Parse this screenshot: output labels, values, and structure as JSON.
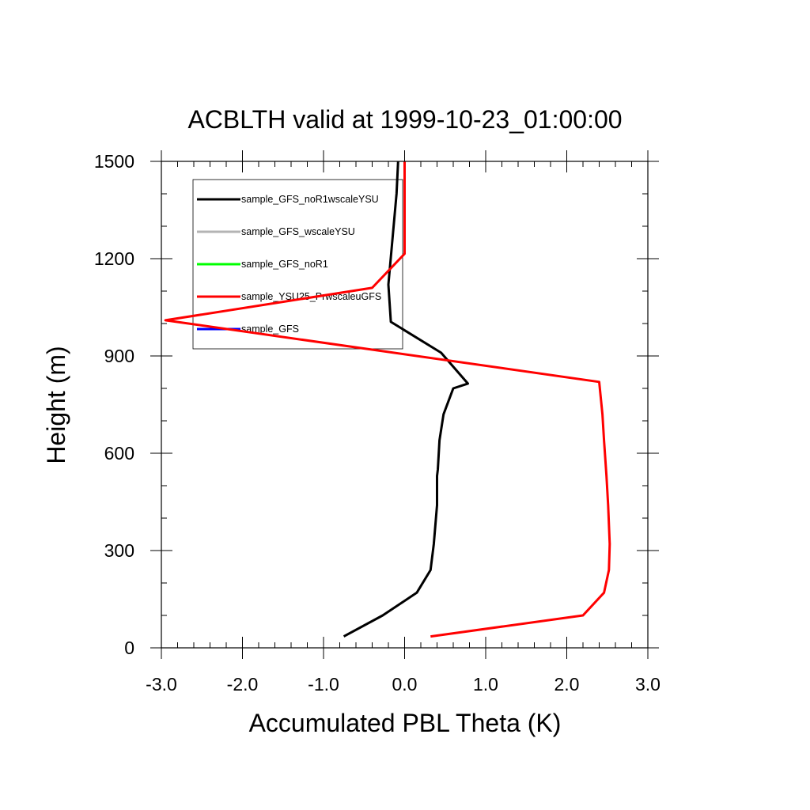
{
  "chart_data": {
    "type": "line",
    "title": "ACBLTH valid at 1999-10-23_01:00:00",
    "xlabel": "Accumulated PBL Theta (K)",
    "ylabel": "Height (m)",
    "xlim": [
      -3.0,
      3.0
    ],
    "ylim": [
      0,
      1500
    ],
    "x_ticks": [
      -3.0,
      -2.0,
      -1.0,
      0.0,
      1.0,
      2.0,
      3.0
    ],
    "x_tick_labels": [
      "-3.0",
      "-2.0",
      "-1.0",
      "0.0",
      "1.0",
      "2.0",
      "3.0"
    ],
    "y_ticks": [
      0,
      300,
      600,
      900,
      1200,
      1500
    ],
    "y_tick_labels": [
      "0",
      "300",
      "600",
      "900",
      "1200",
      "1500"
    ],
    "grid": false,
    "legend_position": "top-left",
    "series": [
      {
        "name": "sample_GFS_noR1wscaleYSU",
        "color": "#000000",
        "x": [
          -0.75,
          -0.27,
          0.15,
          0.32,
          0.36,
          0.4,
          0.4,
          0.41,
          0.43,
          0.48,
          0.6,
          0.78,
          0.45,
          -0.17,
          -0.2,
          -0.1,
          -0.08
        ],
        "y": [
          35,
          100,
          170,
          240,
          320,
          440,
          530,
          550,
          640,
          720,
          800,
          815,
          910,
          1005,
          1120,
          1400,
          1500
        ]
      },
      {
        "name": "sample_GFS_wscaleYSU",
        "color": "#b4b4b4",
        "x": [],
        "y": []
      },
      {
        "name": "sample_GFS_noR1",
        "color": "#00ff00",
        "x": [],
        "y": []
      },
      {
        "name": "sample_YSU25_PrwscaleuGFS",
        "color": "#ff0000",
        "x": [
          0.32,
          2.2,
          2.46,
          2.52,
          2.53,
          2.51,
          2.49,
          2.46,
          2.44,
          2.4,
          -2.95,
          -0.4,
          0.0,
          0.0,
          0.0
        ],
        "y": [
          35,
          100,
          170,
          240,
          320,
          440,
          530,
          640,
          720,
          820,
          1010,
          1110,
          1215,
          1400,
          1500
        ]
      },
      {
        "name": "sample_GFS",
        "color": "#0000ff",
        "x": [],
        "y": []
      }
    ]
  }
}
